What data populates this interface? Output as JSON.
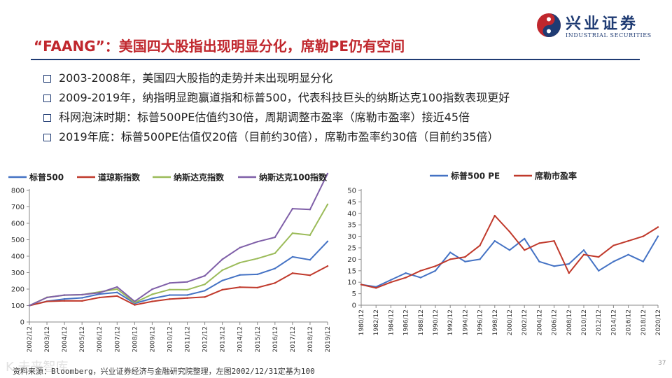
{
  "title": "“FAANG”：美国四大股指出现明显分化，席勒PE仍有空间",
  "logo": {
    "cn": "兴业证券",
    "en": "INDUSTRIAL SECURITIES"
  },
  "bullets": [
    "2003-2008年，美国四大股指的走势并未出现明显分化",
    "2009-2019年，纳指明显跑赢道指和标普500，代表科技巨头的纳斯达克100指数表现更好",
    "科网泡沫时期：标普500PE估值约30倍，周期调整市盈率（席勒市盈率）接近45倍",
    "2019年底：标普500PE估值仅20倍（目前约30倍），席勒市盈率约30倍（目前约35倍）"
  ],
  "source": "资料来源：Bloomberg，兴业证券经济与金融研究院整理，左图2002/12/31定基为100",
  "watermark": "K  未来智库",
  "page_number": "37",
  "colors": {
    "sp500": "#4472c4",
    "dow": "#c0392b",
    "nasdaq": "#9bbb59",
    "ndx100": "#7f5fa8",
    "title": "#c0272d",
    "navy": "#1f3b73"
  },
  "chart_data": [
    {
      "type": "line",
      "title": "",
      "xlabel": "",
      "ylabel": "",
      "ylim": [
        0,
        800
      ],
      "yticks": [
        0,
        100,
        200,
        300,
        400,
        500,
        600,
        700,
        800
      ],
      "x": [
        "2002/12",
        "2003/12",
        "2004/12",
        "2005/12",
        "2006/12",
        "2007/12",
        "2008/12",
        "2009/12",
        "2010/12",
        "2011/12",
        "2012/12",
        "2013/12",
        "2014/12",
        "2015/12",
        "2016/12",
        "2017/12",
        "2018/12",
        "2019/12"
      ],
      "series": [
        {
          "name": "标普500",
          "values": [
            100,
            126,
            140,
            147,
            170,
            180,
            113,
            143,
            164,
            164,
            190,
            252,
            286,
            290,
            325,
            396,
            378,
            490
          ]
        },
        {
          "name": "道琼斯指数",
          "values": [
            100,
            125,
            129,
            128,
            149,
            158,
            104,
            125,
            139,
            146,
            152,
            196,
            212,
            209,
            237,
            297,
            284,
            340
          ]
        },
        {
          "name": "纳斯达克指数",
          "values": [
            100,
            150,
            163,
            166,
            183,
            200,
            118,
            168,
            197,
            196,
            229,
            315,
            361,
            386,
            418,
            540,
            528,
            715
          ]
        },
        {
          "name": "纳斯达克100指数",
          "values": [
            100,
            149,
            164,
            166,
            178,
            213,
            125,
            199,
            237,
            244,
            281,
            381,
            452,
            488,
            515,
            689,
            684,
            902
          ]
        }
      ]
    },
    {
      "type": "line",
      "title": "",
      "xlabel": "",
      "ylabel": "",
      "ylim": [
        0,
        50
      ],
      "yticks": [
        0,
        5,
        10,
        15,
        20,
        25,
        30,
        35,
        40,
        45,
        50
      ],
      "x": [
        "1980/12",
        "1982/12",
        "1984/12",
        "1986/12",
        "1988/12",
        "1990/12",
        "1992/12",
        "1994/12",
        "1996/12",
        "1998/12",
        "2000/12",
        "2002/12",
        "2004/12",
        "2006/12",
        "2008/12",
        "2010/12",
        "2012/12",
        "2014/12",
        "2016/12",
        "2018/12",
        "2020/12"
      ],
      "series": [
        {
          "name": "标普500 PE",
          "values": [
            9,
            8,
            11,
            14,
            12,
            15,
            23,
            19,
            20,
            28,
            24,
            29,
            19,
            17,
            18,
            24,
            15,
            19,
            22,
            19,
            30
          ]
        },
        {
          "name": "席勒市盈率",
          "values": [
            9,
            7.5,
            10,
            12,
            15,
            17,
            20,
            21,
            26,
            39,
            32,
            24,
            27,
            28,
            14,
            22,
            21,
            26,
            28,
            30,
            34
          ]
        }
      ]
    }
  ]
}
